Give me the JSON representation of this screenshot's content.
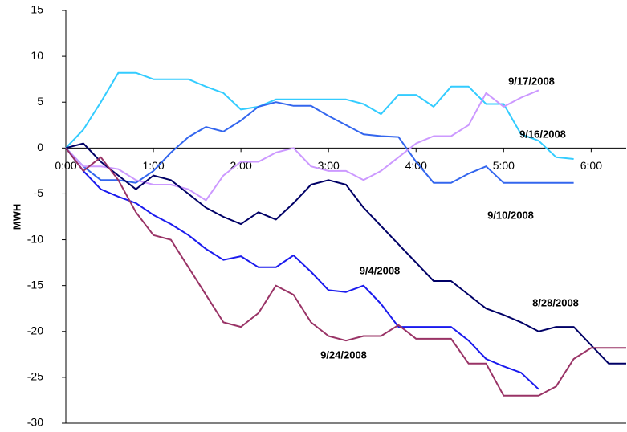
{
  "chart_data": {
    "type": "line",
    "ylabel": "MWH",
    "x": [
      0,
      0.2,
      0.4,
      0.6,
      0.8,
      1.0,
      1.2,
      1.4,
      1.6,
      1.8,
      2.0,
      2.2,
      2.4,
      2.6,
      2.8,
      3.0,
      3.2,
      3.4,
      3.6,
      3.8,
      4.0,
      4.2,
      4.4,
      4.6,
      4.8,
      5.0,
      5.2,
      5.4,
      5.6,
      5.8,
      6.0,
      6.2,
      6.4
    ],
    "xlim": [
      0,
      6.4
    ],
    "xticks": [
      {
        "value": 0,
        "label": "0:00"
      },
      {
        "value": 1,
        "label": "1:00"
      },
      {
        "value": 2,
        "label": "2:00"
      },
      {
        "value": 3,
        "label": "3:00"
      },
      {
        "value": 4,
        "label": "4:00"
      },
      {
        "value": 5,
        "label": "5:00"
      },
      {
        "value": 6,
        "label": "6:00"
      }
    ],
    "ylim": [
      -30,
      15
    ],
    "yticks": [
      -30,
      -25,
      -20,
      -15,
      -10,
      -5,
      0,
      5,
      10,
      15
    ],
    "series": [
      {
        "name": "9/16/2008",
        "color": "#33ccff",
        "values": [
          0,
          2,
          5,
          8.2,
          8.2,
          7.5,
          7.5,
          7.5,
          6.7,
          6,
          4.2,
          4.5,
          5.3,
          5.3,
          5.3,
          5.3,
          5.3,
          4.8,
          3.7,
          5.8,
          5.8,
          4.5,
          6.7,
          6.7,
          4.8,
          4.8,
          1.5,
          0.8,
          -1,
          -1.2,
          null,
          null,
          null
        ]
      },
      {
        "name": "9/10/2008",
        "color": "#3366ee",
        "values": [
          0,
          -2,
          -3.5,
          -3.5,
          -3.8,
          -2.5,
          -0.5,
          1.2,
          2.3,
          1.8,
          3,
          4.5,
          5,
          4.6,
          4.6,
          3.5,
          2.5,
          1.5,
          1.3,
          1.2,
          -1.5,
          -3.8,
          -3.8,
          -2.8,
          -2,
          -3.8,
          -3.8,
          -3.8,
          -3.8,
          -3.8,
          null,
          null,
          null
        ]
      },
      {
        "name": "9/17/2008",
        "color": "#cc99ff",
        "values": [
          0,
          -2,
          -2,
          -2.3,
          -3.5,
          -4,
          -4,
          -4.5,
          -5.7,
          -3,
          -1.5,
          -1.5,
          -0.5,
          0,
          -2,
          -2.5,
          -2.5,
          -3.5,
          -2.5,
          -1,
          0.5,
          1.3,
          1.3,
          2.5,
          6,
          4.5,
          5.5,
          6.3,
          null,
          null,
          null,
          null,
          null
        ]
      },
      {
        "name": "8/28/2008",
        "color": "#000066",
        "values": [
          0,
          0.5,
          -1.5,
          -3,
          -4.5,
          -3,
          -3.5,
          -5,
          -6.5,
          -7.5,
          -8.3,
          -7,
          -7.8,
          -6,
          -4,
          -3.5,
          -4,
          -6.5,
          -8.5,
          -10.5,
          -12.5,
          -14.5,
          -14.5,
          -16,
          -17.5,
          -18.2,
          -19,
          -20,
          -19.5,
          -19.5,
          -21.5,
          -23.5,
          -23.5
        ]
      },
      {
        "name": "9/4/2008",
        "color": "#1a1aee",
        "values": [
          0,
          -2.5,
          -4.5,
          -5.3,
          -6,
          -7.3,
          -8.3,
          -9.5,
          -11,
          -12.2,
          -11.8,
          -13,
          -13,
          -11.7,
          -13.5,
          -15.5,
          -15.7,
          -15,
          -17,
          -19.5,
          -19.5,
          -19.5,
          -19.5,
          -21,
          -23,
          -23.8,
          -24.5,
          -26.3,
          null,
          null,
          null,
          null,
          null
        ]
      },
      {
        "name": "9/24/2008",
        "color": "#993366",
        "values": [
          0,
          -2.5,
          -1,
          -3.5,
          -7,
          -9.5,
          -10,
          -13,
          -16,
          -19,
          -19.5,
          -18,
          -15,
          -16,
          -19,
          -20.5,
          -21,
          -20.5,
          -20.5,
          -19.3,
          -20.8,
          -20.8,
          -20.8,
          -23.5,
          -23.5,
          -27,
          -27,
          -27,
          -26,
          -23,
          -21.8,
          -21.8,
          -21.8
        ]
      }
    ]
  }
}
